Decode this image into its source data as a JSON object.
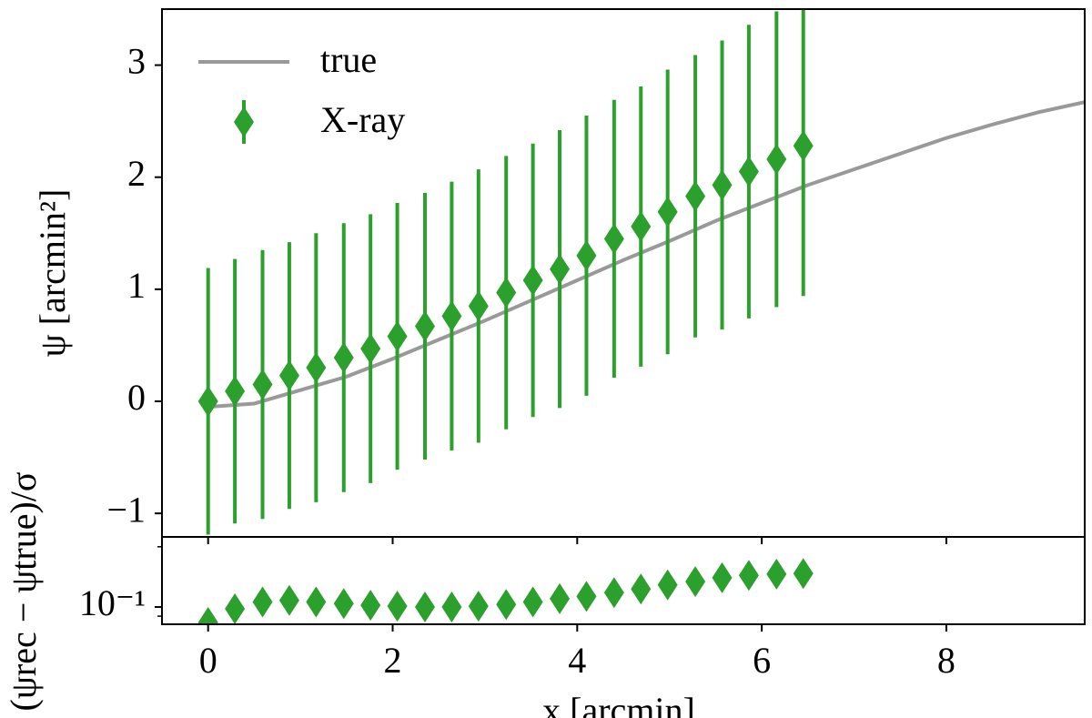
{
  "chart_data": [
    {
      "type": "errorbar",
      "ylabel": "ψ [arcmin²]",
      "xlim": [
        -0.5,
        9.5
      ],
      "xticks": [
        0,
        2,
        4,
        6,
        8
      ],
      "ylim": [
        -1.21,
        3.5
      ],
      "yticks": [
        {
          "value": -1,
          "label": "−1"
        },
        0,
        1,
        2,
        3
      ],
      "legend": "upper left",
      "series": [
        {
          "name": "true",
          "color": "#999999",
          "kind": "line",
          "x": [
            0,
            0.5,
            1,
            1.5,
            2,
            2.5,
            3,
            3.5,
            4,
            4.5,
            5,
            5.5,
            6,
            6.5,
            7,
            7.5,
            8,
            8.5,
            9,
            9.5
          ],
          "values": [
            -0.05,
            -0.02,
            0.1,
            0.22,
            0.38,
            0.55,
            0.72,
            0.9,
            1.08,
            1.26,
            1.43,
            1.61,
            1.77,
            1.93,
            2.07,
            2.21,
            2.35,
            2.47,
            2.58,
            2.67
          ]
        },
        {
          "name": "X-ray",
          "color": "#2ca02c",
          "kind": "errorbar",
          "x": [
            0,
            0.29,
            0.59,
            0.88,
            1.17,
            1.47,
            1.76,
            2.05,
            2.35,
            2.64,
            2.93,
            3.23,
            3.52,
            3.81,
            4.1,
            4.4,
            4.69,
            4.98,
            5.28,
            5.57,
            5.86,
            6.16,
            6.45
          ],
          "values": [
            0,
            0.09,
            0.15,
            0.23,
            0.3,
            0.39,
            0.47,
            0.58,
            0.67,
            0.76,
            0.85,
            0.97,
            1.08,
            1.18,
            1.3,
            1.45,
            1.56,
            1.69,
            1.83,
            1.93,
            2.05,
            2.16,
            2.28
          ],
          "errors": [
            1.19,
            1.18,
            1.2,
            1.19,
            1.2,
            1.2,
            1.2,
            1.19,
            1.19,
            1.2,
            1.22,
            1.22,
            1.22,
            1.24,
            1.25,
            1.24,
            1.25,
            1.27,
            1.26,
            1.29,
            1.31,
            1.32,
            1.34
          ]
        }
      ]
    },
    {
      "type": "scatter",
      "xlabel": "x [arcmin]",
      "ylabel": "(ψrec − ψtrue)/σ",
      "xlim": [
        -0.5,
        9.5
      ],
      "xticks": [
        0,
        2,
        4,
        6,
        8
      ],
      "ylim": [
        0.082,
        0.224
      ],
      "log_y": true,
      "yticks": [
        {
          "value": 0.1,
          "label": "10⁻¹"
        }
      ],
      "yminorticks": [
        0.09,
        0.2
      ],
      "series": [
        {
          "color": "#2ca02c",
          "x": [
            0,
            0.29,
            0.59,
            0.88,
            1.17,
            1.47,
            1.76,
            2.05,
            2.35,
            2.64,
            2.93,
            3.23,
            3.52,
            3.81,
            4.1,
            4.4,
            4.69,
            4.98,
            5.28,
            5.57,
            5.86,
            6.16,
            6.45
          ],
          "values": [
            0.0837,
            0.098,
            0.106,
            0.108,
            0.106,
            0.104,
            0.102,
            0.101,
            0.1,
            0.1,
            0.101,
            0.103,
            0.106,
            0.11,
            0.113,
            0.118,
            0.123,
            0.129,
            0.134,
            0.14,
            0.144,
            0.146,
            0.147
          ]
        }
      ]
    }
  ]
}
